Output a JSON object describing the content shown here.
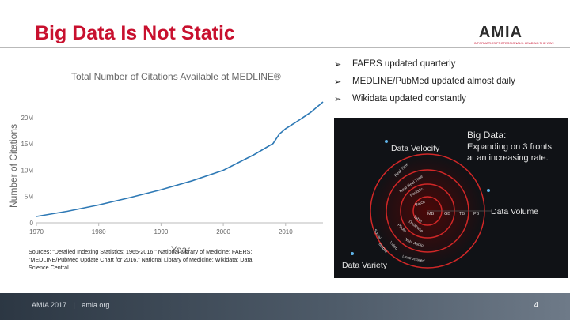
{
  "slide": {
    "title": "Big Data Is Not Static",
    "page_number": "4"
  },
  "logo": {
    "word": "AMIA",
    "tagline": "INFORMATICS PROFESSIONALS. LEADING THE WAY."
  },
  "bullets": [
    "FAERS updated quarterly",
    "MEDLINE/PubMed updated almost daily",
    "Wikidata updated constantly"
  ],
  "bullet_icon": "arrowhead-bullet-icon",
  "chart_data": {
    "type": "line",
    "title": "Total Number of Citations Available at MEDLINE®",
    "xlabel": "Year",
    "ylabel": "Number of Citations",
    "x_ticks": [
      "1970",
      "1980",
      "1990",
      "2000",
      "2010"
    ],
    "y_ticks": [
      "0",
      "5M",
      "10M",
      "15M",
      "20M"
    ],
    "xlim": [
      1970,
      2016
    ],
    "ylim": [
      0,
      23
    ],
    "series": [
      {
        "name": "Citations",
        "x": [
          1970,
          1975,
          1980,
          1985,
          1990,
          1995,
          2000,
          2005,
          2008,
          2009,
          2010,
          2012,
          2014,
          2016
        ],
        "y": [
          1.2,
          2.2,
          3.4,
          4.8,
          6.3,
          8.0,
          10.0,
          13.0,
          15.1,
          16.9,
          17.9,
          19.4,
          21.0,
          23.0
        ]
      }
    ],
    "grid": false,
    "line_color": "#2e79b5"
  },
  "big_data_image": {
    "heading_line1": "Big Data:",
    "heading_line2": "Expanding on 3 fronts",
    "heading_line3": "at an increasing rate.",
    "velocity_label": "Data Velocity",
    "volume_label": "Data Volume",
    "variety_label": "Data Variety",
    "volume_units": [
      "MB",
      "GB",
      "TB",
      "PB"
    ],
    "velocity_items": [
      "Real Time",
      "Near Real Time",
      "Periodic",
      "Batch"
    ],
    "variety_items": [
      "Table",
      "Database",
      "Photo",
      "Web",
      "Audio",
      "Video",
      "Social",
      "Mobile",
      "Unstructured"
    ]
  },
  "sources": {
    "text": "Sources: “Detailed Indexing Statistics: 1965-2016.” National Library of Medicine; FAERS: “MEDLINE/PubMed Update Chart for 2016.” National Library of Medicine; Wikidata: Data Science Central"
  },
  "footer": {
    "event": "AMIA 2017",
    "separator": "|",
    "site": "amia.org"
  },
  "colors": {
    "title_red": "#c8102e",
    "chart_line": "#2e79b5",
    "footer_dark": "#2c3743"
  }
}
